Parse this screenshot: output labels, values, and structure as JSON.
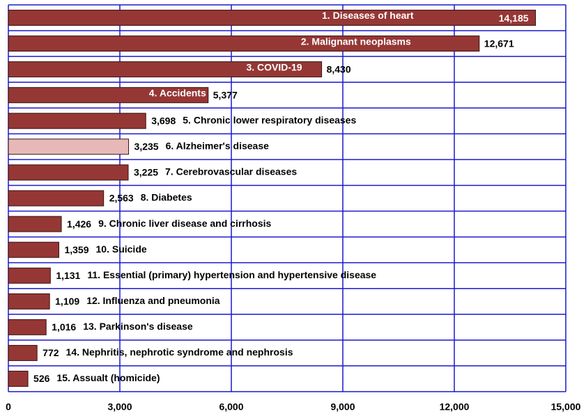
{
  "chart_data": {
    "type": "bar",
    "orientation": "horizontal",
    "categories": [
      "1.  Diseases of heart",
      "2.  Malignant neoplasms",
      "3.  COVID-19",
      "4.  Accidents",
      "5. Chronic lower respiratory diseases",
      "6. Alzheimer's disease",
      "7. Cerebrovascular diseases",
      "8. Diabetes",
      "9. Chronic liver disease and cirrhosis",
      "10.  Suicide",
      "11.  Essential (primary) hypertension and hypertensive disease",
      "12. Influenza and pneumonia",
      "13. Parkinson's disease",
      "14. Nephritis, nephrotic syndrome and nephrosis",
      "15.  Assualt (homicide)"
    ],
    "values": [
      14185,
      12671,
      8430,
      5377,
      3698,
      3235,
      3225,
      2563,
      1426,
      1359,
      1131,
      1109,
      1016,
      772,
      526
    ],
    "value_labels": [
      "14,185",
      "12,671",
      "8,430",
      "5,377",
      "3,698",
      "3,235",
      "3,225",
      "2,563",
      "1,426",
      "1,359",
      "1,131",
      "1,109",
      "1,016",
      "772",
      "526"
    ],
    "colors": [
      "#953735",
      "#953735",
      "#953735",
      "#953735",
      "#953735",
      "#e6b9b8",
      "#953735",
      "#953735",
      "#953735",
      "#953735",
      "#953735",
      "#953735",
      "#953735",
      "#953735",
      "#953735"
    ],
    "xlim": [
      0,
      15000
    ],
    "xticks": [
      0,
      {
        "value": 3000,
        "label": "3,000"
      },
      {
        "value": 6000,
        "label": "6,000"
      },
      {
        "value": 9000,
        "label": "9,000"
      },
      {
        "value": 12000,
        "label": "12,000"
      },
      {
        "value": 15000,
        "label": "15,000"
      }
    ],
    "grid": true,
    "grid_color": "#1a1acc"
  }
}
